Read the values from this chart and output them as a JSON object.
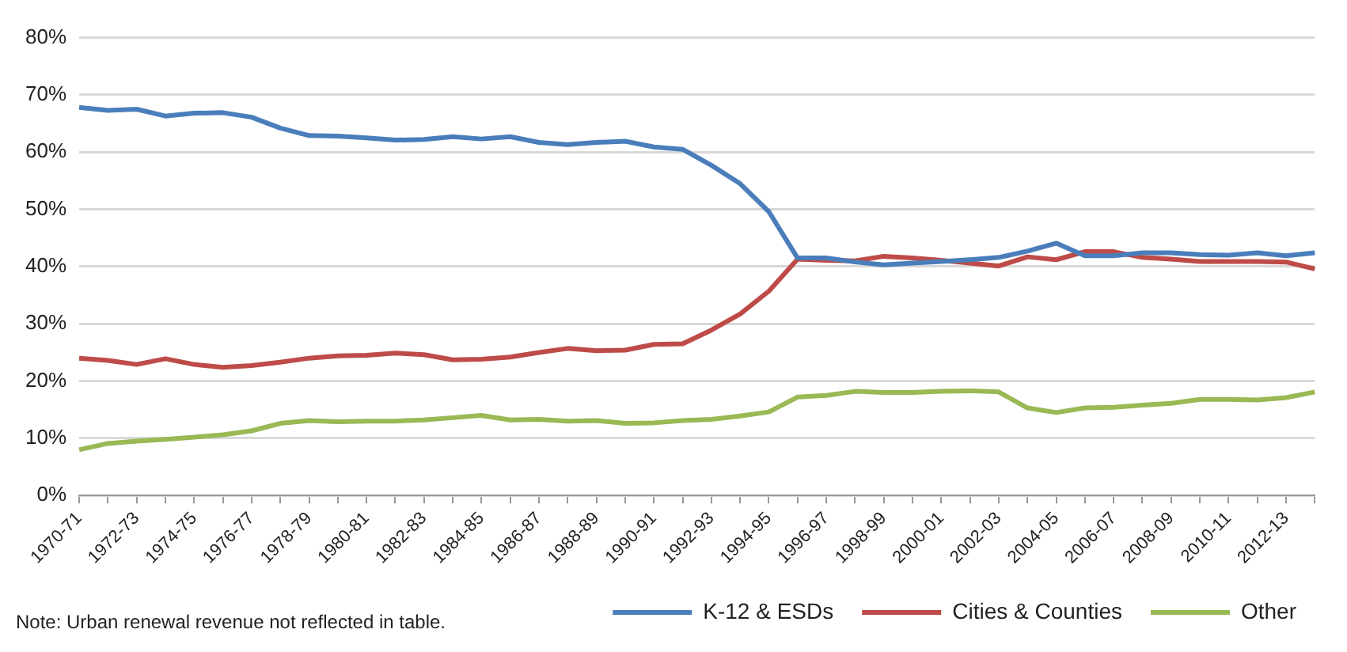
{
  "chart_data": {
    "type": "line",
    "categories": [
      "1970-71",
      null,
      "1972-73",
      null,
      "1974-75",
      null,
      "1976-77",
      null,
      "1978-79",
      null,
      "1980-81",
      null,
      "1982-83",
      null,
      "1984-85",
      null,
      "1986-87",
      null,
      "1988-89",
      null,
      "1990-91",
      null,
      "1992-93",
      null,
      "1994-95",
      null,
      "1996-97",
      null,
      "1998-99",
      null,
      "2000-01",
      null,
      "2002-03",
      null,
      "2004-05",
      null,
      "2006-07",
      null,
      "2008-09",
      null,
      "2010-11",
      null,
      "2012-13",
      null
    ],
    "series": [
      {
        "name": "K-12 & ESDs",
        "color": "#4a7ebb",
        "values": [
          67.8,
          67.3,
          67.5,
          66.3,
          66.8,
          66.9,
          66.1,
          64.2,
          62.9,
          62.8,
          62.5,
          62.1,
          62.2,
          62.7,
          62.3,
          62.7,
          61.7,
          61.3,
          61.7,
          61.9,
          60.9,
          60.5,
          57.7,
          54.5,
          49.6,
          41.5,
          41.5,
          40.8,
          40.3,
          40.6,
          40.9,
          41.2,
          41.6,
          42.7,
          44.1,
          41.9,
          41.9,
          42.4,
          42.4,
          42.1,
          42.0,
          42.4,
          41.9,
          42.4
        ]
      },
      {
        "name": "Cities & Counties",
        "color": "#be4b48",
        "values": [
          24.0,
          23.6,
          22.9,
          23.9,
          22.9,
          22.4,
          22.7,
          23.3,
          24.0,
          24.4,
          24.5,
          24.9,
          24.6,
          23.7,
          23.8,
          24.2,
          25.0,
          25.7,
          25.3,
          25.4,
          26.4,
          26.5,
          28.9,
          31.7,
          35.7,
          41.3,
          41.1,
          41.0,
          41.8,
          41.5,
          41.1,
          40.6,
          40.1,
          41.7,
          41.2,
          42.6,
          42.6,
          41.6,
          41.3,
          40.9,
          40.9,
          40.9,
          40.8,
          39.6
        ]
      },
      {
        "name": "Other",
        "color": "#98b954",
        "values": [
          8.0,
          9.1,
          9.5,
          9.8,
          10.2,
          10.6,
          11.3,
          12.6,
          13.1,
          12.9,
          13.0,
          13.0,
          13.2,
          13.6,
          14.0,
          13.2,
          13.3,
          13.0,
          13.1,
          12.6,
          12.7,
          13.1,
          13.3,
          13.9,
          14.6,
          17.2,
          17.5,
          18.2,
          18.0,
          18.0,
          18.2,
          18.3,
          18.1,
          15.3,
          14.5,
          15.3,
          15.4,
          15.8,
          16.1,
          16.8,
          16.8,
          16.7,
          17.1,
          18.1
        ]
      }
    ],
    "ylim": [
      0,
      80
    ],
    "yticks": [
      {
        "value": 0,
        "label": "0%"
      },
      {
        "value": 10,
        "label": "10%"
      },
      {
        "value": 20,
        "label": "20%"
      },
      {
        "value": 30,
        "label": "30%"
      },
      {
        "value": 40,
        "label": "40%"
      },
      {
        "value": 50,
        "label": "50%"
      },
      {
        "value": 60,
        "label": "60%"
      },
      {
        "value": 70,
        "label": "70%"
      },
      {
        "value": 80,
        "label": "80%"
      }
    ],
    "grid": "y",
    "legend": "bottom",
    "marker": "none",
    "line_style": "solid",
    "annotations": [
      "Note: Urban renewal revenue not reflected in table."
    ]
  }
}
